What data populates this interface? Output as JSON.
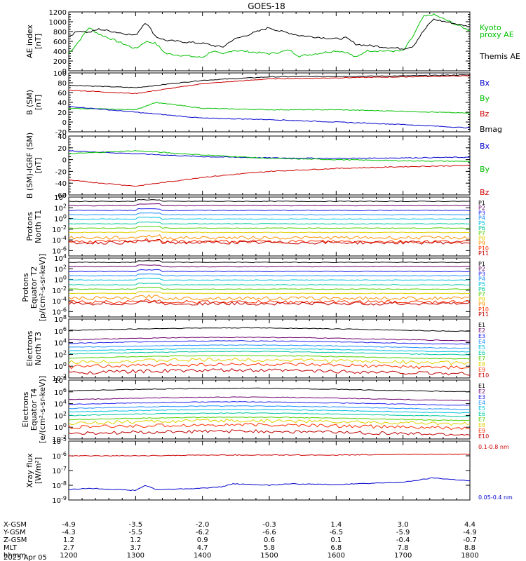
{
  "title": "GOES-18",
  "colors": {
    "black": "#000000",
    "green": "#00c000",
    "blue": "#0000cc",
    "red": "#cc0000",
    "xray_red": "#cc0000",
    "xray_blue": "#0000cc",
    "rainbow": [
      "#000000",
      "#6a006a",
      "#2222ee",
      "#1e90ff",
      "#00c0e0",
      "#00c8a0",
      "#50d000",
      "#e0d000",
      "#ff9000",
      "#ff3000",
      "#c00000"
    ]
  },
  "x_axis": {
    "range": [
      1200,
      1800
    ],
    "row_labels": [
      "X-GSM",
      "Y-GSM",
      "Z-GSM",
      "MLT",
      "hhmm"
    ],
    "date_label": "2025 Apr 05",
    "ticks": [
      {
        "hhmm": "1200",
        "x": "-4.9",
        "y": "-4.3",
        "z": "1.2",
        "mlt": "2.7"
      },
      {
        "hhmm": "1300",
        "x": "-3.5",
        "y": "-5.5",
        "z": "1.2",
        "mlt": "3.7"
      },
      {
        "hhmm": "1400",
        "x": "-2.0",
        "y": "-6.2",
        "z": "0.9",
        "mlt": "4.7"
      },
      {
        "hhmm": "1500",
        "x": "-0.3",
        "y": "-6.6",
        "z": "0.6",
        "mlt": "5.8"
      },
      {
        "hhmm": "1600",
        "x": "1.4",
        "y": "-6.5",
        "z": "0.1",
        "mlt": "6.8"
      },
      {
        "hhmm": "1700",
        "x": "3.0",
        "y": "-5.9",
        "z": "-0.4",
        "mlt": "7.8"
      },
      {
        "hhmm": "1800",
        "x": "4.4",
        "y": "-4.9",
        "z": "-0.7",
        "mlt": "8.8"
      }
    ]
  },
  "chart_data": [
    {
      "type": "line",
      "id": "ae",
      "ylabel": [
        "AE index",
        "[nT]"
      ],
      "ylim": [
        0,
        1200
      ],
      "yticks": [
        "0",
        "200",
        "400",
        "600",
        "800",
        "1000",
        "1200"
      ],
      "legend": [
        {
          "text": "Kyoto",
          "color": "green"
        },
        {
          "text": "proxy AE",
          "color": "green"
        },
        {
          "text": "Themis AE",
          "color": "black"
        }
      ],
      "series": [
        {
          "name": "Kyoto proxy AE",
          "color": "green",
          "x": [
            1200,
            1215,
            1230,
            1245,
            1300,
            1315,
            1330,
            1345,
            1400,
            1415,
            1430,
            1445,
            1500,
            1515,
            1530,
            1545,
            1600,
            1615,
            1630,
            1645,
            1700,
            1715,
            1730,
            1745,
            1800
          ],
          "y": [
            350,
            600,
            880,
            750,
            450,
            600,
            560,
            350,
            270,
            410,
            330,
            420,
            350,
            380,
            420,
            300,
            410,
            380,
            270,
            410,
            400,
            700,
            1100,
            1150,
            820
          ]
        },
        {
          "name": "Themis AE",
          "color": "black",
          "x": [
            1200,
            1215,
            1230,
            1245,
            1300,
            1315,
            1330,
            1345,
            1400,
            1415,
            1430,
            1445,
            1500,
            1515,
            1530,
            1545,
            1600,
            1615,
            1630,
            1645,
            1700,
            1715,
            1730,
            1745,
            1800
          ],
          "y": [
            700,
            820,
            780,
            850,
            720,
            1000,
            700,
            620,
            560,
            520,
            480,
            630,
            880,
            810,
            770,
            720,
            650,
            670,
            540,
            520,
            450,
            500,
            800,
            1050,
            900
          ]
        }
      ]
    },
    {
      "type": "line",
      "id": "bsm",
      "ylabel": [
        "B (SM)",
        "[nT]"
      ],
      "ylim": [
        -20,
        100
      ],
      "yticks": [
        "-20",
        "0",
        "20",
        "40",
        "60",
        "80",
        "100"
      ],
      "legend": [
        {
          "text": "Bx",
          "color": "blue"
        },
        {
          "text": "By",
          "color": "green"
        },
        {
          "text": "Bz",
          "color": "red"
        },
        {
          "text": "Bmag",
          "color": "black"
        }
      ],
      "series": [
        {
          "name": "Bmag",
          "color": "black",
          "x": [
            1200,
            1300,
            1400,
            1500,
            1600,
            1700,
            1800
          ],
          "y": [
            75,
            70,
            85,
            92,
            93,
            94,
            96
          ]
        },
        {
          "name": "Bz",
          "color": "red",
          "x": [
            1200,
            1300,
            1400,
            1500,
            1600,
            1700,
            1800
          ],
          "y": [
            65,
            58,
            78,
            88,
            90,
            92,
            94
          ]
        },
        {
          "name": "By",
          "color": "green",
          "x": [
            1200,
            1300,
            1330,
            1400,
            1500,
            1600,
            1700,
            1800
          ],
          "y": [
            28,
            25,
            40,
            28,
            25,
            25,
            22,
            18
          ]
        },
        {
          "name": "Bx",
          "color": "blue",
          "x": [
            1200,
            1300,
            1400,
            1500,
            1600,
            1700,
            1800
          ],
          "y": [
            32,
            20,
            8,
            5,
            0,
            -5,
            -12
          ]
        }
      ]
    },
    {
      "type": "line",
      "id": "bsm_igrf",
      "ylabel": [
        "B (SM)-IGRF (SM)",
        "[nT]"
      ],
      "ylim": [
        -60,
        40
      ],
      "yticks": [
        "-60",
        "-40",
        "-20",
        "0",
        "20",
        "40"
      ],
      "legend": [
        {
          "text": "Bx",
          "color": "blue"
        },
        {
          "text": "By",
          "color": "green"
        },
        {
          "text": "Bz",
          "color": "red"
        }
      ],
      "series": [
        {
          "name": "Bx",
          "color": "blue",
          "x": [
            1200,
            1300,
            1400,
            1500,
            1600,
            1700,
            1800
          ],
          "y": [
            15,
            10,
            5,
            3,
            2,
            3,
            4
          ]
        },
        {
          "name": "By",
          "color": "green",
          "x": [
            1200,
            1300,
            1400,
            1500,
            1600,
            1700,
            1800
          ],
          "y": [
            10,
            15,
            8,
            2,
            0,
            -2,
            -3
          ]
        },
        {
          "name": "Bz",
          "color": "red",
          "x": [
            1200,
            1300,
            1400,
            1500,
            1600,
            1700,
            1800
          ],
          "y": [
            -35,
            -45,
            -30,
            -20,
            -15,
            -12,
            -10
          ]
        }
      ]
    },
    {
      "type": "line",
      "id": "protons_north",
      "scale": "log",
      "ylabel": [
        "Protons",
        "North T1"
      ],
      "ylim_exp": [
        -7,
        4
      ],
      "yticks": [
        "10^-6",
        "10^-4",
        "10^-2",
        "10^0",
        "10^2",
        "10^4"
      ],
      "legend": [
        {
          "text": "P1",
          "color": 0
        },
        {
          "text": "P2",
          "color": 1
        },
        {
          "text": "P3",
          "color": 2
        },
        {
          "text": "P4",
          "color": 3
        },
        {
          "text": "P5",
          "color": 4
        },
        {
          "text": "P6",
          "color": 5
        },
        {
          "text": "P7",
          "color": 6
        },
        {
          "text": "P8",
          "color": 7
        },
        {
          "text": "P9",
          "color": 8
        },
        {
          "text": "P10",
          "color": 9
        },
        {
          "text": "P11",
          "color": 10
        }
      ],
      "series_exp": [
        3.2,
        2.4,
        1.5,
        0.7,
        -0.1,
        -1.0,
        -1.8,
        -2.6,
        -3.6,
        -4.3,
        -4.5
      ]
    },
    {
      "type": "line",
      "id": "protons_equator",
      "scale": "log",
      "ylabel": [
        "Protons",
        "Equator T2",
        "[p/(cm²-s-sr-keV)]"
      ],
      "ylim_exp": [
        -7,
        4
      ],
      "yticks": [
        "10^-6",
        "10^-4",
        "10^-2",
        "10^0",
        "10^2",
        "10^4"
      ],
      "legend": [
        {
          "text": "P1",
          "color": 0
        },
        {
          "text": "P2",
          "color": 1
        },
        {
          "text": "P3",
          "color": 2
        },
        {
          "text": "P4",
          "color": 3
        },
        {
          "text": "P5",
          "color": 4
        },
        {
          "text": "P6",
          "color": 5
        },
        {
          "text": "P7",
          "color": 6
        },
        {
          "text": "P8",
          "color": 7
        },
        {
          "text": "P9",
          "color": 8
        },
        {
          "text": "P10",
          "color": 9
        },
        {
          "text": "P11",
          "color": 10
        }
      ],
      "series_exp": [
        3.2,
        2.4,
        1.5,
        0.7,
        -0.1,
        -1.0,
        -1.8,
        -2.6,
        -3.5,
        -4.2,
        -4.5
      ]
    },
    {
      "type": "line",
      "id": "electrons_north",
      "scale": "log",
      "ylabel": [
        "Electrons",
        "North T3"
      ],
      "ylim_exp": [
        -2,
        8
      ],
      "yticks": [
        "10^-2",
        "10^0",
        "10^2",
        "10^4",
        "10^6",
        "10^8"
      ],
      "legend": [
        {
          "text": "E1",
          "color": 0
        },
        {
          "text": "E2",
          "color": 1
        },
        {
          "text": "E3",
          "color": 2
        },
        {
          "text": "E4",
          "color": 3
        },
        {
          "text": "E5",
          "color": 4
        },
        {
          "text": "E6",
          "color": 5
        },
        {
          "text": "E7",
          "color": 6
        },
        {
          "text": "E8",
          "color": 7
        },
        {
          "text": "E9",
          "color": 9
        },
        {
          "text": "E10",
          "color": 10
        }
      ],
      "series_exp": [
        6.2,
        4.6,
        4.0,
        3.3,
        2.7,
        2.2,
        1.5,
        0.8,
        0.0,
        -1.0
      ]
    },
    {
      "type": "line",
      "id": "electrons_equator",
      "scale": "log",
      "ylabel": [
        "Electrons",
        "Equator T4",
        "[e/(cm²-s-sr-keV)]"
      ],
      "ylim_exp": [
        -2,
        8
      ],
      "yticks": [
        "10^-2",
        "10^0",
        "10^2",
        "10^4",
        "10^6",
        "10^8"
      ],
      "legend": [
        {
          "text": "E1",
          "color": 0
        },
        {
          "text": "E2",
          "color": 1
        },
        {
          "text": "E3",
          "color": 2
        },
        {
          "text": "E4",
          "color": 3
        },
        {
          "text": "E5",
          "color": 4
        },
        {
          "text": "E6",
          "color": 5
        },
        {
          "text": "E7",
          "color": 6
        },
        {
          "text": "E8",
          "color": 7
        },
        {
          "text": "E9",
          "color": 9
        },
        {
          "text": "E10",
          "color": 10
        }
      ],
      "series_exp": [
        6.3,
        4.8,
        4.0,
        3.3,
        2.7,
        2.1,
        1.4,
        0.8,
        0.1,
        -1.0
      ]
    },
    {
      "type": "line",
      "id": "xray",
      "scale": "log",
      "ylabel": [
        "Xray flux",
        "[W/m²]"
      ],
      "ylim_exp": [
        -9,
        -5
      ],
      "yticks": [
        "10^-9",
        "10^-8",
        "10^-7",
        "10^-6",
        "10^-5"
      ],
      "legend": [
        {
          "text": "0.1-0.8 nm",
          "color": "xray_red"
        },
        {
          "text": "0.05-0.4 nm",
          "color": "xray_blue"
        }
      ],
      "series": [
        {
          "name": "0.1-0.8 nm",
          "color": "xray_red",
          "x": [
            1200,
            1300,
            1400,
            1500,
            1600,
            1700,
            1800
          ],
          "y_exp": [
            -6.0,
            -6.0,
            -5.95,
            -5.95,
            -5.95,
            -5.9,
            -5.9
          ]
        },
        {
          "name": "0.05-0.4 nm",
          "color": "xray_blue",
          "x": [
            1200,
            1230,
            1300,
            1315,
            1330,
            1400,
            1430,
            1445,
            1500,
            1530,
            1600,
            1630,
            1700,
            1730,
            1745,
            1800
          ],
          "y_exp": [
            -8.3,
            -8.2,
            -8.35,
            -8.0,
            -8.3,
            -8.2,
            -8.1,
            -7.9,
            -8.0,
            -7.9,
            -7.95,
            -7.9,
            -7.8,
            -7.6,
            -7.5,
            -7.7
          ]
        }
      ]
    }
  ]
}
